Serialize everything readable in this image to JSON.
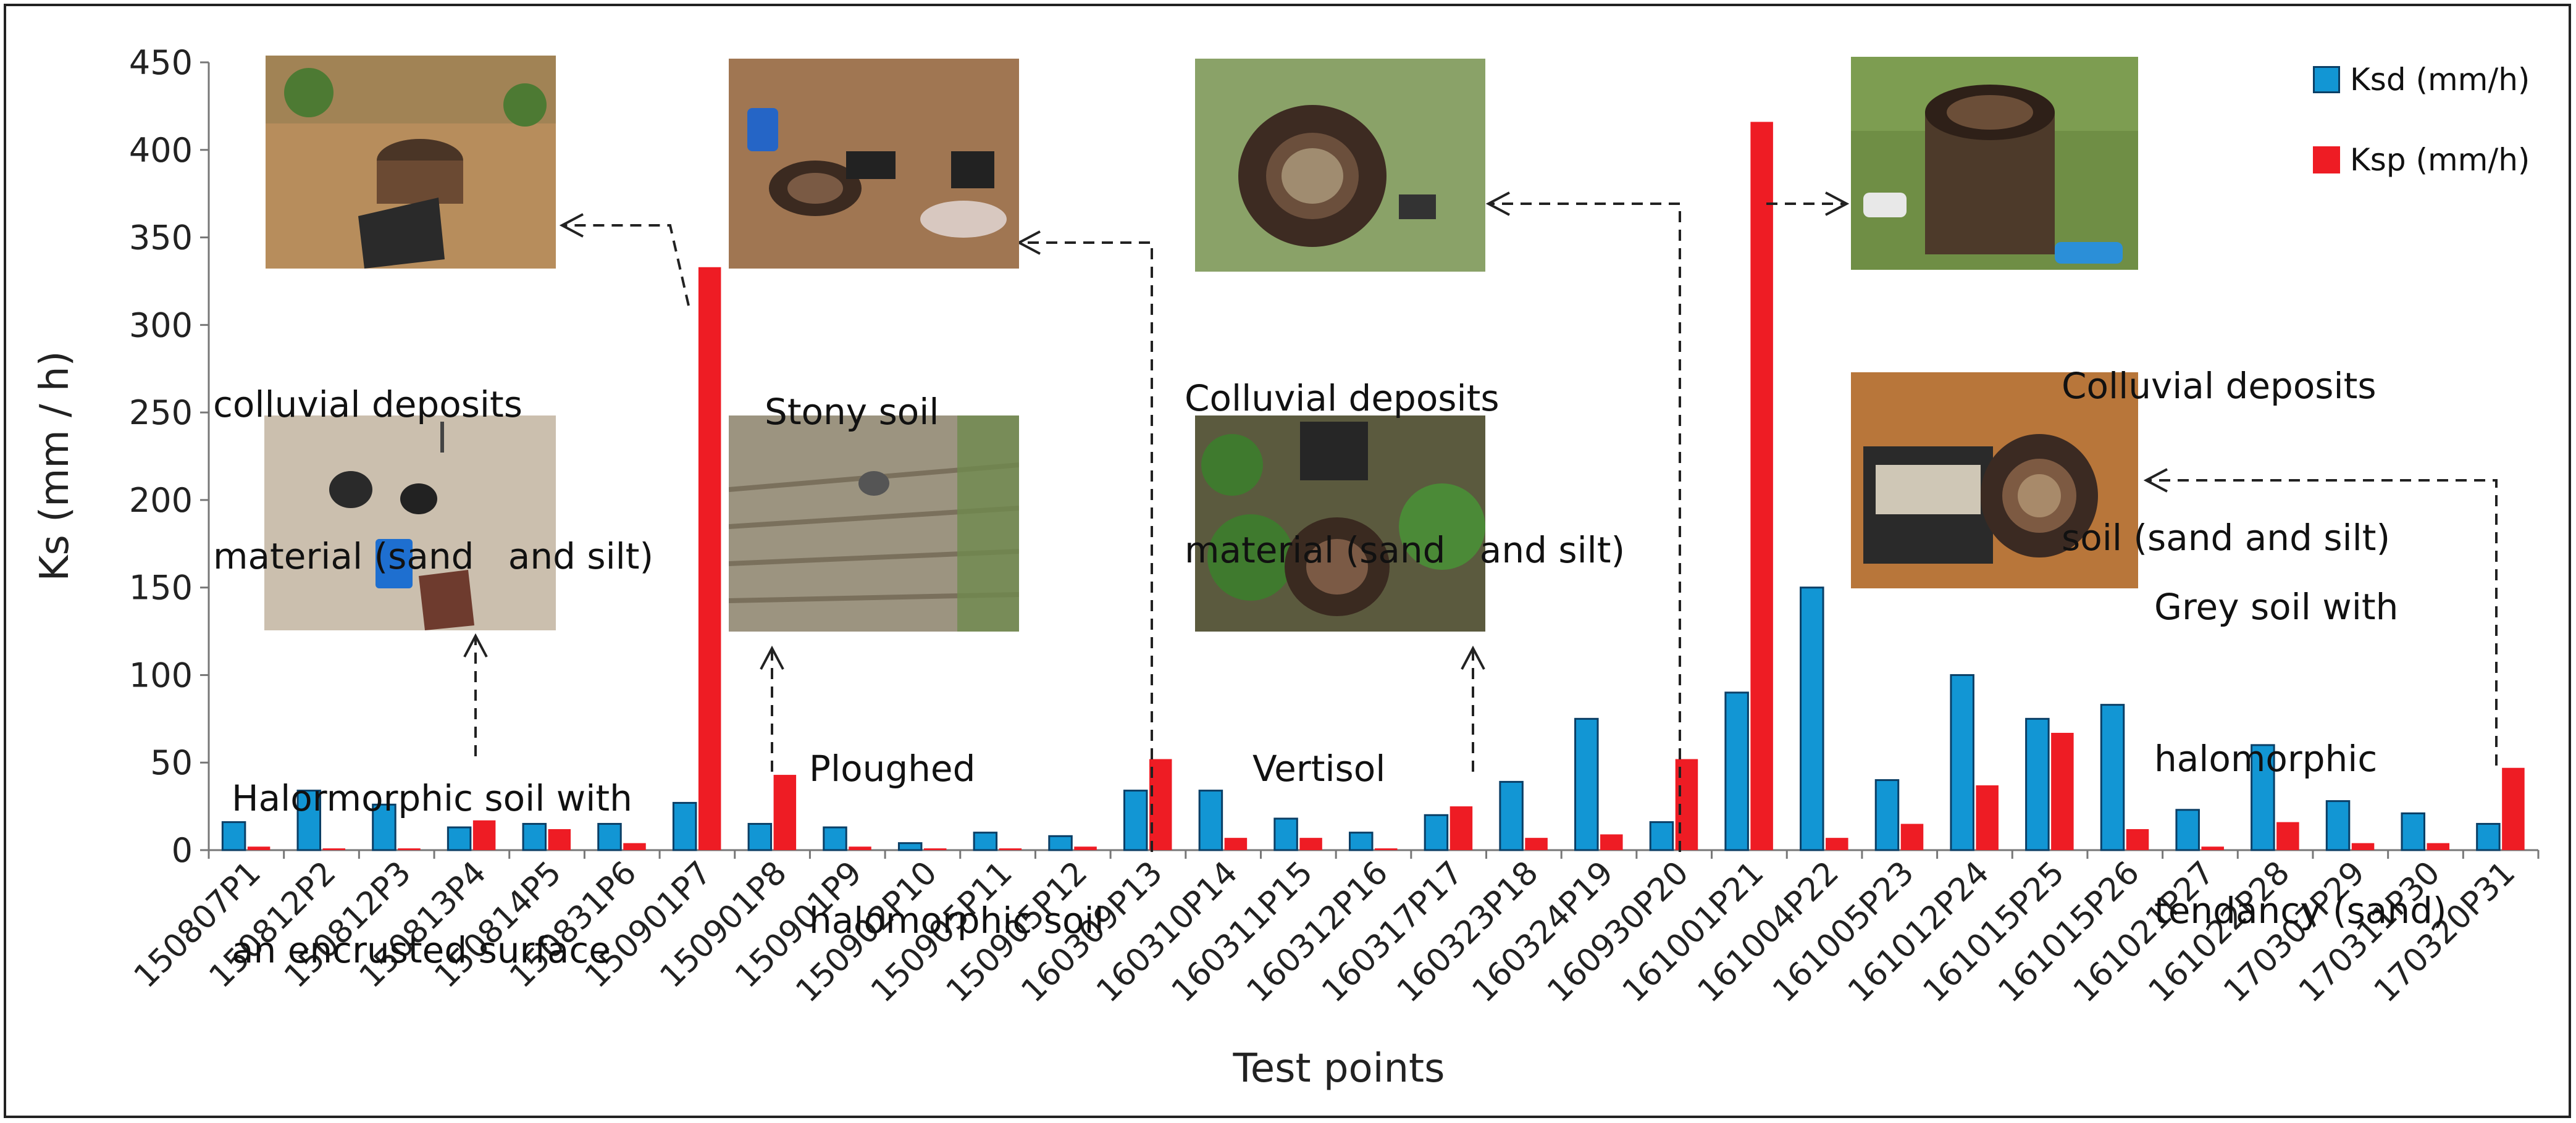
{
  "chart_data": {
    "type": "bar",
    "ylabel": "Ks (mm / h)",
    "xlabel": "Test points",
    "ylim": [
      0,
      450
    ],
    "yticks": [
      "0",
      "50",
      "100",
      "150",
      "200",
      "250",
      "300",
      "350",
      "400",
      "450"
    ],
    "grid": false,
    "legend_position": "top-right",
    "categories": [
      "150807P1",
      "150812P2",
      "150812P3",
      "150813P4",
      "150814P5",
      "150831P6",
      "150901P7",
      "150901P8",
      "150901P9",
      "150902P10",
      "150905P11",
      "150905P12",
      "160309P13",
      "160310P14",
      "160311P15",
      "160312P16",
      "160317P17",
      "160323P18",
      "160324P19",
      "160930P20",
      "161001P21",
      "161004P22",
      "161005P23",
      "161012P24",
      "161015P25",
      "161015P26",
      "161021P27",
      "161022P28",
      "170307P29",
      "170311P30",
      "170320P31"
    ],
    "series": [
      {
        "name": "Ksd (mm/h)",
        "color": "#1296d4",
        "values": [
          16,
          34,
          26,
          13,
          15,
          15,
          27,
          15,
          13,
          4,
          10,
          8,
          34,
          34,
          18,
          10,
          20,
          39,
          75,
          16,
          90,
          150,
          40,
          100,
          75,
          83,
          23,
          60,
          28,
          21,
          15
        ]
      },
      {
        "name": "Ksp (mm/h)",
        "color": "#ee1c24",
        "values": [
          2,
          1,
          1,
          17,
          12,
          4,
          333,
          43,
          2,
          1,
          1,
          2,
          52,
          7,
          7,
          1,
          25,
          7,
          9,
          52,
          416,
          7,
          15,
          37,
          67,
          12,
          2,
          16,
          4,
          4,
          47
        ]
      }
    ],
    "annotations": [
      {
        "id": "a1",
        "lines": [
          "colluvial deposits",
          "material (sand   and silt)"
        ],
        "points_to": "150901P7"
      },
      {
        "id": "a2",
        "lines": [
          "Stony soil"
        ],
        "points_to": "160309P13"
      },
      {
        "id": "a3",
        "lines": [
          "Colluvial deposits",
          "material (sand   and silt)"
        ],
        "points_to": "160930P20"
      },
      {
        "id": "a4",
        "lines": [
          "Colluvial deposits",
          "soil (sand and silt)"
        ],
        "points_to": "161001P21"
      },
      {
        "id": "a5",
        "lines": [
          "Halormorphic soil with",
          "an encrusted surface"
        ],
        "points_to": "150813P4"
      },
      {
        "id": "a6",
        "lines": [
          "Ploughed",
          "halomorphic soil"
        ],
        "points_to": "150901P8"
      },
      {
        "id": "a7",
        "lines": [
          "Vertisol"
        ],
        "points_to": "160317P17"
      },
      {
        "id": "a8",
        "lines": [
          "Grey soil with",
          "halomorphic",
          "tendancy (sand)"
        ],
        "points_to": "170320P31"
      }
    ]
  }
}
